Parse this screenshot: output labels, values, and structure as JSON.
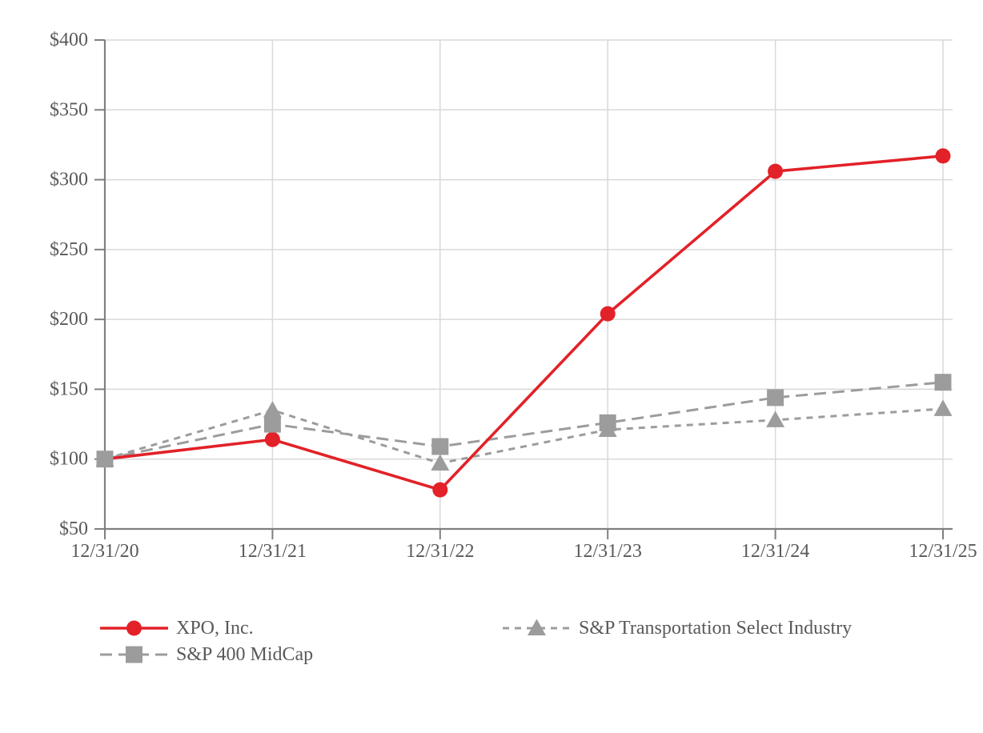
{
  "chart_data": {
    "type": "line",
    "categories": [
      "12/31/20",
      "12/31/21",
      "12/31/22",
      "12/31/23",
      "12/31/24",
      "12/31/25"
    ],
    "series": [
      {
        "name": "XPO, Inc.",
        "values": [
          100,
          114,
          78,
          204,
          306,
          317
        ],
        "color": "#e22128",
        "marker": "circle",
        "line_style": "solid",
        "line_width": 3.6
      },
      {
        "name": "S&P 400 MidCap",
        "values": [
          100,
          125,
          109,
          126,
          144,
          155
        ],
        "color": "#9c9c9c",
        "marker": "square",
        "line_style": "long-dash",
        "line_width": 3
      },
      {
        "name": "S&P Transportation Select Industry",
        "values": [
          100,
          135,
          97,
          121,
          128,
          136
        ],
        "color": "#9c9c9c",
        "marker": "triangle",
        "line_style": "short-dash",
        "line_width": 3
      }
    ],
    "y_axis": {
      "min": 50,
      "max": 400,
      "step": 50,
      "tick_labels": [
        "$50",
        "$100",
        "$150",
        "$200",
        "$250",
        "$300",
        "$350",
        "$400"
      ]
    },
    "x_axis": {
      "tick_labels": [
        "12/31/20",
        "12/31/21",
        "12/31/22",
        "12/31/23",
        "12/31/24",
        "12/31/25"
      ]
    },
    "grid": true,
    "legend_position": "bottom",
    "colors": {
      "gridline": "#d9d9d9",
      "axis": "#808080",
      "label": "#595959",
      "background": "#ffffff"
    }
  }
}
